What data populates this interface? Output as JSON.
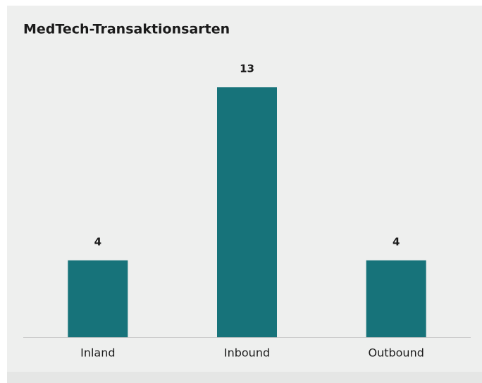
{
  "chart_data": {
    "type": "bar",
    "title": "MedTech-Transaktionsarten",
    "categories": [
      "Inland",
      "Inbound",
      "Outbound"
    ],
    "values": [
      4,
      13,
      4
    ],
    "color": "#17737a"
  }
}
